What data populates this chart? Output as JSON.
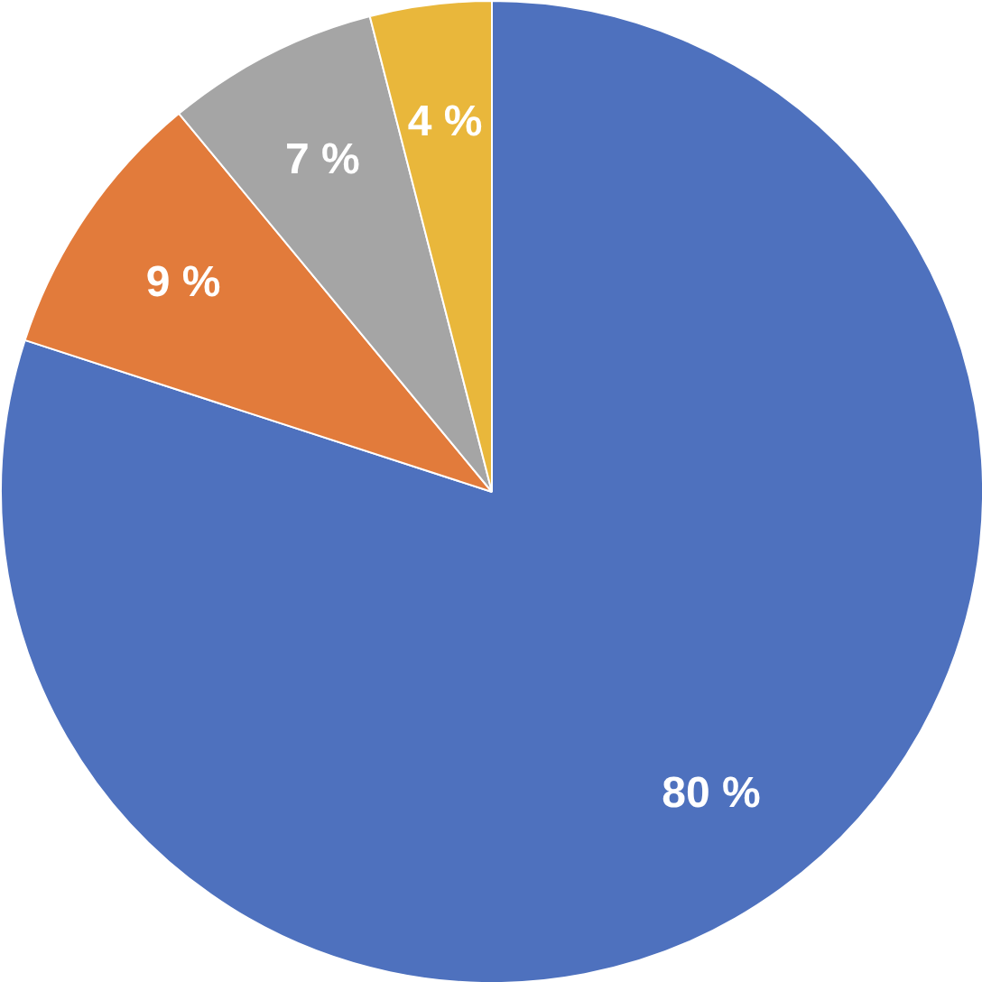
{
  "chart_data": {
    "type": "pie",
    "categories": [
      null,
      null,
      null,
      null
    ],
    "values": [
      80,
      9,
      7,
      4
    ],
    "colors": [
      "#4e71be",
      "#e27b3b",
      "#a5a5a5",
      "#e9b73b"
    ],
    "value_labels": [
      "80 %",
      "9 %",
      "7 %",
      "4 %"
    ]
  }
}
